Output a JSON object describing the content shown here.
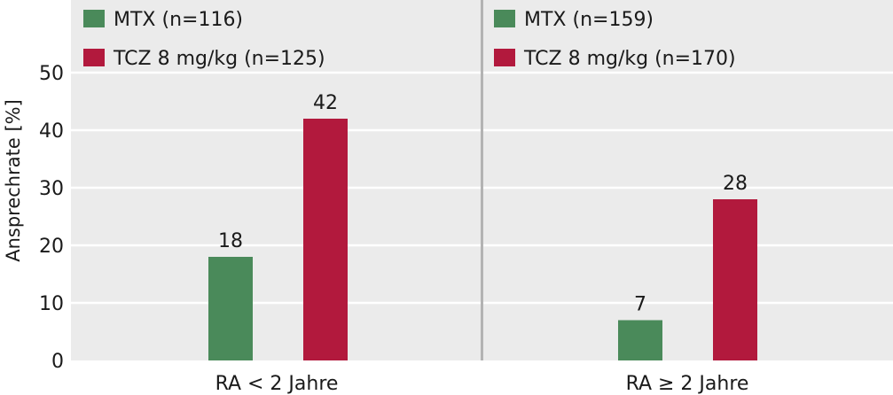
{
  "chart_data": {
    "type": "bar",
    "ylabel": "Ansprechrate [%]",
    "ylim": [
      0,
      50
    ],
    "yticks": [
      "0",
      "10",
      "20",
      "30",
      "40",
      "50"
    ],
    "grid": true,
    "legend_position": "top-left of each panel",
    "colors": {
      "panel_bg": "#ebebeb",
      "grid": "#ffffff",
      "divider": "#b3b3b3",
      "mtx": "#4a8a5a",
      "tcz": "#b2193d"
    },
    "panels": [
      {
        "category": "RA < 2 Jahre",
        "series": [
          {
            "name": "MTX (n=116)",
            "value": 18,
            "value_label": "18",
            "color": "#4a8a5a"
          },
          {
            "name": "TCZ 8 mg/kg (n=125)",
            "value": 42,
            "value_label": "42",
            "color": "#b2193d"
          }
        ]
      },
      {
        "category": "RA ≥ 2 Jahre",
        "series": [
          {
            "name": "MTX (n=159)",
            "value": 7,
            "value_label": "7",
            "color": "#4a8a5a"
          },
          {
            "name": "TCZ 8 mg/kg (n=170)",
            "value": 28,
            "value_label": "28",
            "color": "#b2193d"
          }
        ]
      }
    ]
  }
}
